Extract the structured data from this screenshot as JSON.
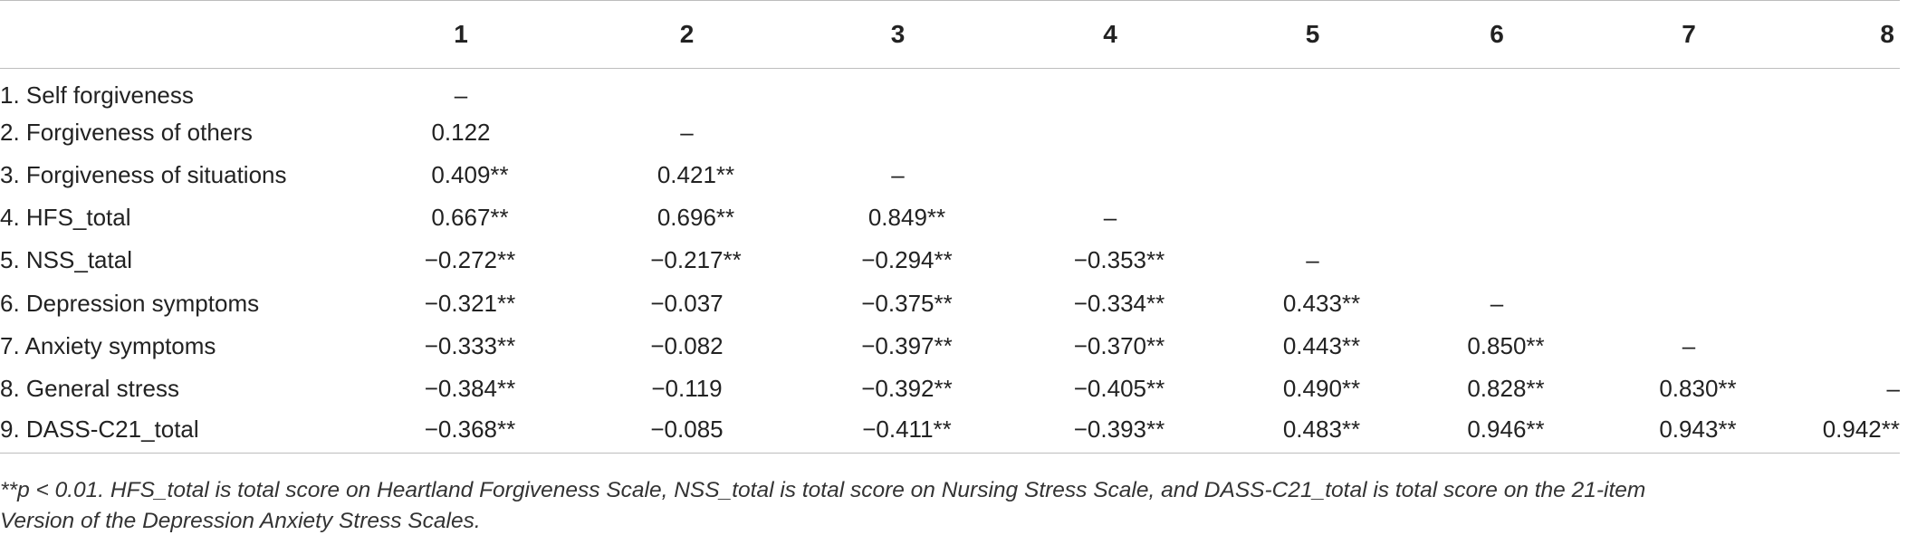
{
  "table": {
    "columns": [
      "",
      "1",
      "2",
      "3",
      "4",
      "5",
      "6",
      "7",
      "8"
    ],
    "rows": [
      {
        "label": "1. Self forgiveness",
        "cells": [
          "–",
          "",
          "",
          "",
          "",
          "",
          "",
          ""
        ]
      },
      {
        "label": "2. Forgiveness of others",
        "cells": [
          "0.122",
          "–",
          "",
          "",
          "",
          "",
          "",
          ""
        ]
      },
      {
        "label": "3. Forgiveness of situations",
        "cells": [
          "0.409**",
          "0.421**",
          "–",
          "",
          "",
          "",
          "",
          ""
        ]
      },
      {
        "label": "4. HFS_total",
        "cells": [
          "0.667**",
          "0.696**",
          "0.849**",
          "–",
          "",
          "",
          "",
          ""
        ]
      },
      {
        "label": "5. NSS_tatal",
        "cells": [
          "−0.272**",
          "−0.217**",
          "−0.294**",
          "−0.353**",
          "–",
          "",
          "",
          ""
        ]
      },
      {
        "label": "6. Depression symptoms",
        "cells": [
          "−0.321**",
          "−0.037",
          "−0.375**",
          "−0.334**",
          "0.433**",
          "–",
          "",
          ""
        ]
      },
      {
        "label": "7. Anxiety symptoms",
        "cells": [
          "−0.333**",
          "−0.082",
          "−0.397**",
          "−0.370**",
          "0.443**",
          "0.850**",
          "–",
          ""
        ]
      },
      {
        "label": "8. General stress",
        "cells": [
          "−0.384**",
          "−0.119",
          "−0.392**",
          "−0.405**",
          "0.490**",
          "0.828**",
          "0.830**",
          "–"
        ]
      },
      {
        "label": "9. DASS-C21_total",
        "cells": [
          "−0.368**",
          "−0.085",
          "−0.411**",
          "−0.393**",
          "0.483**",
          "0.946**",
          "0.943**",
          "0.942**"
        ]
      }
    ]
  },
  "footnote": {
    "line1": "**p < 0.01. HFS_total is total score on Heartland Forgiveness Scale, NSS_total is total score on Nursing Stress Scale, and DASS-C21_total is total score on the 21-item",
    "line2": "Version of the Depression Anxiety Stress Scales."
  }
}
